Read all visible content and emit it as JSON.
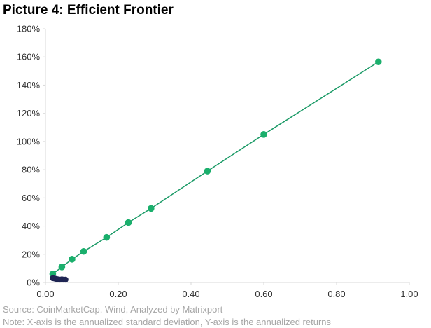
{
  "title": "Picture 4: Efficient Frontier",
  "source": "Source: CoinMarketCap, Wind, Analyzed by Matrixport",
  "note": "Note: X-axis is the annualized standard deviation, Y-axis is the annualized returns",
  "colors": {
    "frontier": "#1aaf6c",
    "frontier_line": "#1a9a66",
    "cluster": "#1f2553",
    "axis": "#d9d9d9"
  },
  "chart_data": {
    "type": "scatter",
    "title": "Picture 4: Efficient Frontier",
    "xlabel": "",
    "ylabel": "",
    "xlim": [
      0,
      1.0
    ],
    "ylim": [
      0,
      1.8
    ],
    "x_ticks": [
      0,
      0.2,
      0.4,
      0.6,
      0.8,
      1.0
    ],
    "x_tick_labels": [
      "0.00",
      "0.20",
      "0.40",
      "0.60",
      "0.80",
      "1.00"
    ],
    "y_ticks": [
      0,
      0.2,
      0.4,
      0.6,
      0.8,
      1.0,
      1.2,
      1.4,
      1.6,
      1.8
    ],
    "y_tick_labels": [
      "0%",
      "20%",
      "40%",
      "60%",
      "80%",
      "100%",
      "120%",
      "140%",
      "160%",
      "180%"
    ],
    "grid": false,
    "legend": "none",
    "series": [
      {
        "role": "efficient-frontier",
        "connected": true,
        "x": [
          0.02,
          0.045,
          0.073,
          0.105,
          0.168,
          0.228,
          0.29,
          0.445,
          0.6,
          0.915
        ],
        "y": [
          0.06,
          0.11,
          0.165,
          0.22,
          0.32,
          0.425,
          0.525,
          0.79,
          1.05,
          1.565
        ]
      },
      {
        "role": "portfolio-cluster",
        "connected": false,
        "x": [
          0.02,
          0.025,
          0.03,
          0.035,
          0.04,
          0.045,
          0.05,
          0.055
        ],
        "y": [
          0.03,
          0.028,
          0.025,
          0.022,
          0.02,
          0.022,
          0.02,
          0.02
        ]
      }
    ]
  }
}
